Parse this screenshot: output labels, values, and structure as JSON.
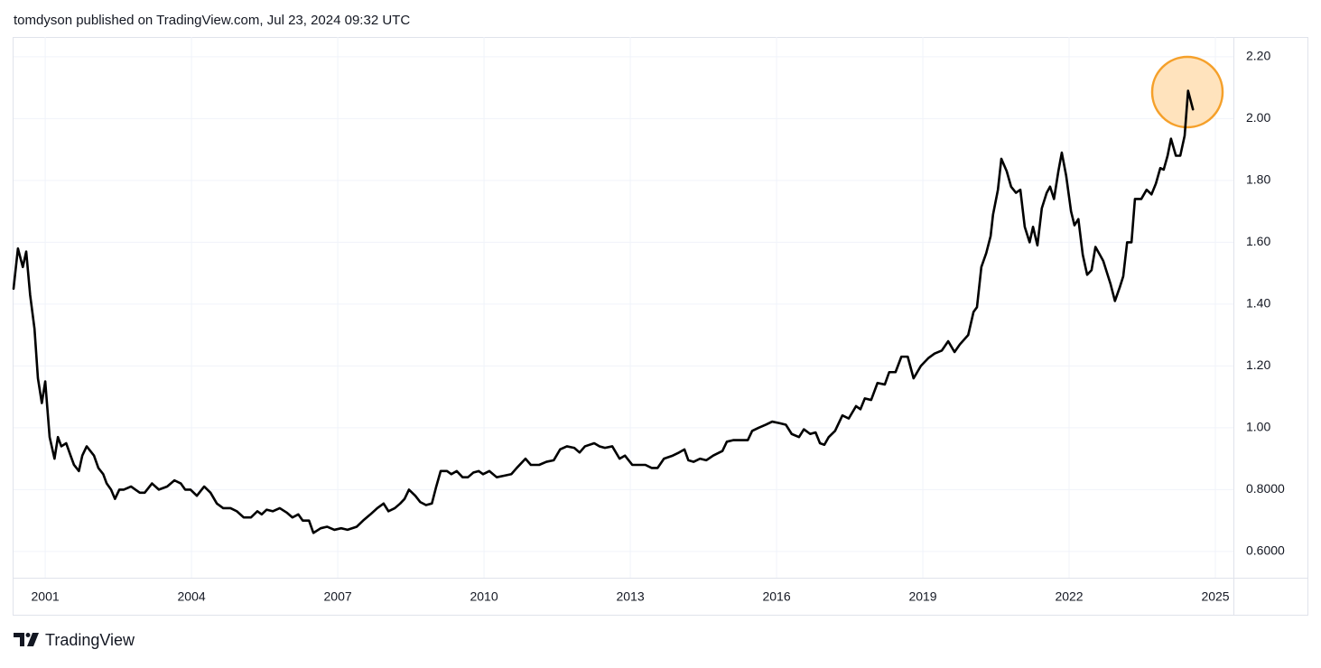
{
  "header": {
    "text": "tomdyson published on TradingView.com, Jul 23, 2024 09:32 UTC"
  },
  "footer": {
    "brand": "TradingView"
  },
  "chart_data": {
    "type": "line",
    "color": "#000000",
    "grid": true,
    "xlim": [
      2000.35,
      2025.37
    ],
    "xticks": [
      2001,
      2004,
      2007,
      2010,
      2013,
      2016,
      2019,
      2022,
      2025
    ],
    "ylim": [
      0.515,
      2.264
    ],
    "yticks": [
      {
        "value": 2.2,
        "label": "2.20"
      },
      {
        "value": 2.0,
        "label": "2.00"
      },
      {
        "value": 1.8,
        "label": "1.80"
      },
      {
        "value": 1.6,
        "label": "1.60"
      },
      {
        "value": 1.4,
        "label": "1.40"
      },
      {
        "value": 1.2,
        "label": "1.20"
      },
      {
        "value": 1.0,
        "label": "1.00"
      },
      {
        "value": 0.8,
        "label": "0.8000"
      },
      {
        "value": 0.6,
        "label": "0.6000"
      }
    ],
    "x": [
      2000.35,
      2000.44,
      2000.54,
      2000.61,
      2000.69,
      2000.78,
      2000.85,
      2000.93,
      2001.0,
      2001.09,
      2001.19,
      2001.26,
      2001.33,
      2001.43,
      2001.52,
      2001.59,
      2001.69,
      2001.76,
      2001.85,
      2002.0,
      2002.09,
      2002.19,
      2002.26,
      2002.35,
      2002.43,
      2002.52,
      2002.61,
      2002.76,
      2002.85,
      2002.94,
      2003.04,
      2003.19,
      2003.33,
      2003.5,
      2003.65,
      2003.78,
      2003.87,
      2003.98,
      2004.11,
      2004.26,
      2004.39,
      2004.52,
      2004.65,
      2004.8,
      2004.93,
      2005.07,
      2005.22,
      2005.35,
      2005.44,
      2005.54,
      2005.67,
      2005.81,
      2005.96,
      2006.07,
      2006.19,
      2006.28,
      2006.41,
      2006.5,
      2006.65,
      2006.78,
      2006.93,
      2007.07,
      2007.2,
      2007.39,
      2007.52,
      2007.67,
      2007.81,
      2007.94,
      2008.04,
      2008.17,
      2008.28,
      2008.37,
      2008.46,
      2008.59,
      2008.69,
      2008.81,
      2008.93,
      2009.02,
      2009.11,
      2009.24,
      2009.33,
      2009.44,
      2009.56,
      2009.67,
      2009.78,
      2009.89,
      2009.98,
      2010.11,
      2010.26,
      2010.41,
      2010.56,
      2010.67,
      2010.85,
      2010.96,
      2011.13,
      2011.28,
      2011.43,
      2011.56,
      2011.7,
      2011.85,
      2011.96,
      2012.07,
      2012.26,
      2012.37,
      2012.48,
      2012.63,
      2012.78,
      2012.89,
      2013.04,
      2013.19,
      2013.31,
      2013.44,
      2013.56,
      2013.69,
      2013.87,
      2014.0,
      2014.11,
      2014.19,
      2014.3,
      2014.43,
      2014.56,
      2014.7,
      2014.89,
      2014.98,
      2015.11,
      2015.26,
      2015.41,
      2015.5,
      2015.63,
      2015.78,
      2015.91,
      2016.06,
      2016.19,
      2016.31,
      2016.46,
      2016.56,
      2016.69,
      2016.8,
      2016.89,
      2016.98,
      2017.07,
      2017.2,
      2017.35,
      2017.48,
      2017.63,
      2017.72,
      2017.81,
      2017.94,
      2018.07,
      2018.22,
      2018.31,
      2018.44,
      2018.56,
      2018.69,
      2018.81,
      2018.96,
      2019.11,
      2019.24,
      2019.39,
      2019.52,
      2019.65,
      2019.76,
      2019.93,
      2020.04,
      2020.11,
      2020.2,
      2020.3,
      2020.39,
      2020.44,
      2020.54,
      2020.61,
      2020.72,
      2020.81,
      2020.91,
      2021.0,
      2021.09,
      2021.19,
      2021.26,
      2021.35,
      2021.44,
      2021.54,
      2021.61,
      2021.69,
      2021.78,
      2021.85,
      2021.94,
      2022.04,
      2022.11,
      2022.19,
      2022.28,
      2022.37,
      2022.46,
      2022.54,
      2022.63,
      2022.7,
      2022.8,
      2022.85,
      2022.94,
      2023.04,
      2023.11,
      2023.19,
      2023.28,
      2023.35,
      2023.48,
      2023.59,
      2023.69,
      2023.78,
      2023.87,
      2023.94,
      2024.02,
      2024.09,
      2024.19,
      2024.28,
      2024.37,
      2024.44,
      2024.54
    ],
    "values": [
      1.45,
      1.58,
      1.52,
      1.57,
      1.43,
      1.32,
      1.16,
      1.08,
      1.15,
      0.97,
      0.9,
      0.97,
      0.94,
      0.95,
      0.91,
      0.88,
      0.86,
      0.91,
      0.94,
      0.91,
      0.87,
      0.85,
      0.82,
      0.8,
      0.77,
      0.8,
      0.8,
      0.81,
      0.8,
      0.79,
      0.79,
      0.82,
      0.8,
      0.81,
      0.83,
      0.82,
      0.8,
      0.8,
      0.78,
      0.81,
      0.79,
      0.755,
      0.74,
      0.74,
      0.73,
      0.71,
      0.71,
      0.73,
      0.72,
      0.735,
      0.73,
      0.74,
      0.725,
      0.71,
      0.72,
      0.7,
      0.7,
      0.66,
      0.675,
      0.68,
      0.67,
      0.675,
      0.67,
      0.68,
      0.7,
      0.72,
      0.74,
      0.755,
      0.73,
      0.74,
      0.755,
      0.77,
      0.8,
      0.78,
      0.76,
      0.75,
      0.755,
      0.81,
      0.86,
      0.86,
      0.85,
      0.86,
      0.84,
      0.84,
      0.855,
      0.86,
      0.85,
      0.86,
      0.84,
      0.845,
      0.85,
      0.87,
      0.9,
      0.88,
      0.88,
      0.89,
      0.895,
      0.93,
      0.94,
      0.935,
      0.92,
      0.94,
      0.95,
      0.94,
      0.935,
      0.94,
      0.9,
      0.91,
      0.88,
      0.88,
      0.88,
      0.87,
      0.87,
      0.9,
      0.91,
      0.92,
      0.93,
      0.895,
      0.89,
      0.9,
      0.895,
      0.91,
      0.925,
      0.955,
      0.96,
      0.96,
      0.96,
      0.99,
      1.0,
      1.01,
      1.02,
      1.015,
      1.01,
      0.98,
      0.97,
      0.995,
      0.98,
      0.985,
      0.95,
      0.945,
      0.97,
      0.99,
      1.04,
      1.03,
      1.07,
      1.06,
      1.095,
      1.09,
      1.145,
      1.14,
      1.18,
      1.18,
      1.23,
      1.23,
      1.16,
      1.2,
      1.225,
      1.24,
      1.25,
      1.28,
      1.245,
      1.27,
      1.3,
      1.375,
      1.39,
      1.52,
      1.565,
      1.62,
      1.69,
      1.77,
      1.87,
      1.83,
      1.78,
      1.76,
      1.77,
      1.65,
      1.6,
      1.65,
      1.59,
      1.71,
      1.76,
      1.78,
      1.74,
      1.83,
      1.89,
      1.815,
      1.7,
      1.655,
      1.675,
      1.56,
      1.495,
      1.51,
      1.585,
      1.56,
      1.54,
      1.49,
      1.465,
      1.41,
      1.455,
      1.49,
      1.6,
      1.6,
      1.74,
      1.74,
      1.77,
      1.755,
      1.79,
      1.84,
      1.835,
      1.88,
      1.935,
      1.88,
      1.88,
      1.945,
      2.09,
      2.03
    ]
  }
}
